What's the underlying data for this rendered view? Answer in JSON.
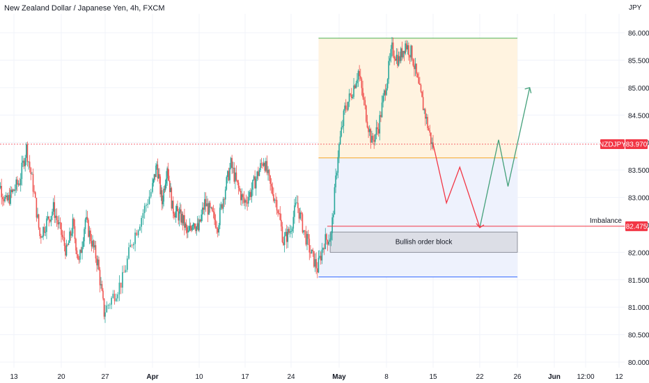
{
  "header": {
    "title": "New Zealand Dollar / Japanese Yen, 4h, FXCM",
    "currency": "JPY"
  },
  "chart_data": {
    "type": "candlestick",
    "title": "New Zealand Dollar / Japanese Yen, 4h, FXCM",
    "y_axis_unit": "JPY",
    "ylim": [
      79.95,
      86.35
    ],
    "y_ticks": [
      "86.000",
      "85.500",
      "85.000",
      "84.500",
      "84.000",
      "83.500",
      "83.000",
      "82.500",
      "82.000",
      "81.500",
      "81.000",
      "80.500",
      "80.000"
    ],
    "x_ticks": [
      {
        "label": "13",
        "bold": false
      },
      {
        "label": "20",
        "bold": false
      },
      {
        "label": "27",
        "bold": false
      },
      {
        "label": "Apr",
        "bold": true
      },
      {
        "label": "10",
        "bold": false
      },
      {
        "label": "17",
        "bold": false
      },
      {
        "label": "24",
        "bold": false
      },
      {
        "label": "May",
        "bold": true
      },
      {
        "label": "8",
        "bold": false
      },
      {
        "label": "15",
        "bold": false
      },
      {
        "label": "22",
        "bold": false
      },
      {
        "label": "26",
        "bold": false
      },
      {
        "label": "Jun",
        "bold": true
      },
      {
        "label": "12:00",
        "bold": false
      },
      {
        "label": "12",
        "bold": false
      }
    ],
    "price_path": [
      [
        "Mar 10",
        83.6
      ],
      [
        "Mar 12",
        82.9
      ],
      [
        "Mar 14",
        83.3
      ],
      [
        "Mar 15",
        83.9
      ],
      [
        "Mar 16",
        83.2
      ],
      [
        "Mar 17",
        82.3
      ],
      [
        "Mar 19",
        82.8
      ],
      [
        "Mar 21",
        82.0
      ],
      [
        "Mar 22",
        82.5
      ],
      [
        "Mar 23",
        81.8
      ],
      [
        "Mar 24",
        82.6
      ],
      [
        "Mar 26",
        81.8
      ],
      [
        "Mar 27",
        80.9
      ],
      [
        "Mar 29",
        81.5
      ],
      [
        "Mar 30",
        82.2
      ],
      [
        "Apr 1",
        83.1
      ],
      [
        "Apr 2",
        83.6
      ],
      [
        "Apr 3",
        82.9
      ],
      [
        "Apr 4",
        83.6
      ],
      [
        "Apr 5",
        82.8
      ],
      [
        "Apr 7",
        82.6
      ],
      [
        "Apr 8",
        82.3
      ],
      [
        "Apr 9",
        82.6
      ],
      [
        "Apr 10",
        82.4
      ],
      [
        "Apr 11",
        82.9
      ],
      [
        "Apr 12",
        82.7
      ],
      [
        "Apr 13",
        82.5
      ],
      [
        "Apr 14",
        83.1
      ],
      [
        "Apr 15",
        83.6
      ],
      [
        "Apr 16",
        83.2
      ],
      [
        "Apr 17",
        82.9
      ],
      [
        "Apr 18",
        83.1
      ],
      [
        "Apr 19",
        83.4
      ],
      [
        "Apr 20",
        83.7
      ],
      [
        "Apr 21",
        83.2
      ],
      [
        "Apr 22",
        82.9
      ],
      [
        "Apr 23",
        82.2
      ],
      [
        "Apr 24",
        82.4
      ],
      [
        "Apr 25",
        82.9
      ],
      [
        "Apr 26",
        82.4
      ],
      [
        "Apr 27",
        82.0
      ],
      [
        "Apr 28",
        81.7
      ],
      [
        "Apr 29",
        82.2
      ],
      [
        "Apr 30",
        82.3
      ],
      [
        "May 1",
        83.8
      ],
      [
        "May 2",
        84.6
      ],
      [
        "May 3",
        84.9
      ],
      [
        "May 4",
        85.3
      ],
      [
        "May 5",
        84.6
      ],
      [
        "May 6",
        84.0
      ],
      [
        "May 7",
        84.3
      ],
      [
        "May 8",
        85.0
      ],
      [
        "May 9",
        85.7
      ],
      [
        "May 10",
        85.5
      ],
      [
        "May 11",
        85.8
      ],
      [
        "May 12",
        85.6
      ],
      [
        "May 13",
        85.0
      ],
      [
        "May 14",
        84.5
      ],
      [
        "May 15",
        83.95
      ]
    ],
    "y_min_visible": 80.45,
    "y_max_visible": 86.1,
    "zones": [
      {
        "name": "premium zone",
        "color": "#fff3e0",
        "border": "#4caf50",
        "from_date": "Apr 28",
        "to_date": "May 26",
        "y_top": 85.9,
        "y_bottom": 83.72
      },
      {
        "name": "discount zone",
        "color": "#eef2fd",
        "border": "#2962ff",
        "from_date": "Apr 28",
        "to_date": "May 26",
        "y_top": 83.72,
        "y_bottom": 81.55
      }
    ],
    "order_block": {
      "label": "Bullish order block",
      "from_date": "Apr 30",
      "to_date": "May 26",
      "y_top": 82.37,
      "y_bottom": 82.0
    },
    "imbalance": {
      "label": "Imbalance",
      "value": "82.475",
      "y": 82.475
    },
    "last_price": {
      "symbol": "NZDJPY",
      "value": "83.970",
      "y": 83.97
    },
    "projection_down": [
      [
        "May 15",
        83.97
      ],
      [
        "May 17",
        82.9
      ],
      [
        "May 19",
        83.55
      ],
      [
        "May 22",
        82.45
      ]
    ],
    "projection_up": [
      [
        "May 22",
        82.45
      ],
      [
        "May 24",
        84.05
      ],
      [
        "May 25",
        83.2
      ],
      [
        "May 28",
        85.0
      ]
    ],
    "colors": {
      "up": "#26a69a",
      "down": "#ef5350",
      "projection_down": "#f23645",
      "projection_up": "#43a07a",
      "last_price": "#f23645",
      "imbalance_line": "#f23645"
    }
  }
}
